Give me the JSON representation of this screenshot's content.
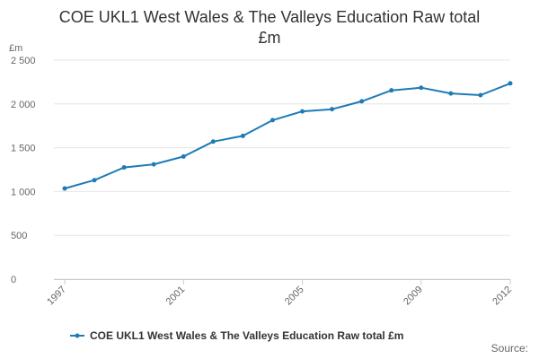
{
  "title_lines": [
    "COE UKL1 West Wales & The Valleys Education Raw total",
    "£m"
  ],
  "source_label": "Source:",
  "colors": {
    "series": "#1f7bb6",
    "grid": "#e6e6e6",
    "axis_text": "#666666"
  },
  "chart_data": {
    "type": "line",
    "title": "COE UKL1 West Wales & The Valleys Education Raw total £m",
    "ylabel": "£m",
    "xlabel": "",
    "ylim": [
      0,
      2500
    ],
    "yticks": [
      0,
      500,
      1000,
      1500,
      2000,
      2500
    ],
    "ytick_labels": [
      "0",
      "500",
      "1 000",
      "1 500",
      "2 000",
      "2 500"
    ],
    "xticks": [
      1997,
      2001,
      2005,
      2009,
      2012
    ],
    "x": [
      1997,
      1998,
      1999,
      2000,
      2001,
      2002,
      2003,
      2004,
      2005,
      2006,
      2007,
      2008,
      2009,
      2010,
      2011,
      2012
    ],
    "series": [
      {
        "name": "COE UKL1 West Wales & The Valleys Education Raw total £m",
        "values": [
          1035,
          1130,
          1275,
          1310,
          1400,
          1570,
          1635,
          1815,
          1915,
          1940,
          2030,
          2155,
          2185,
          2120,
          2100,
          2235
        ]
      }
    ],
    "grid": true,
    "legend_position": "bottom"
  }
}
